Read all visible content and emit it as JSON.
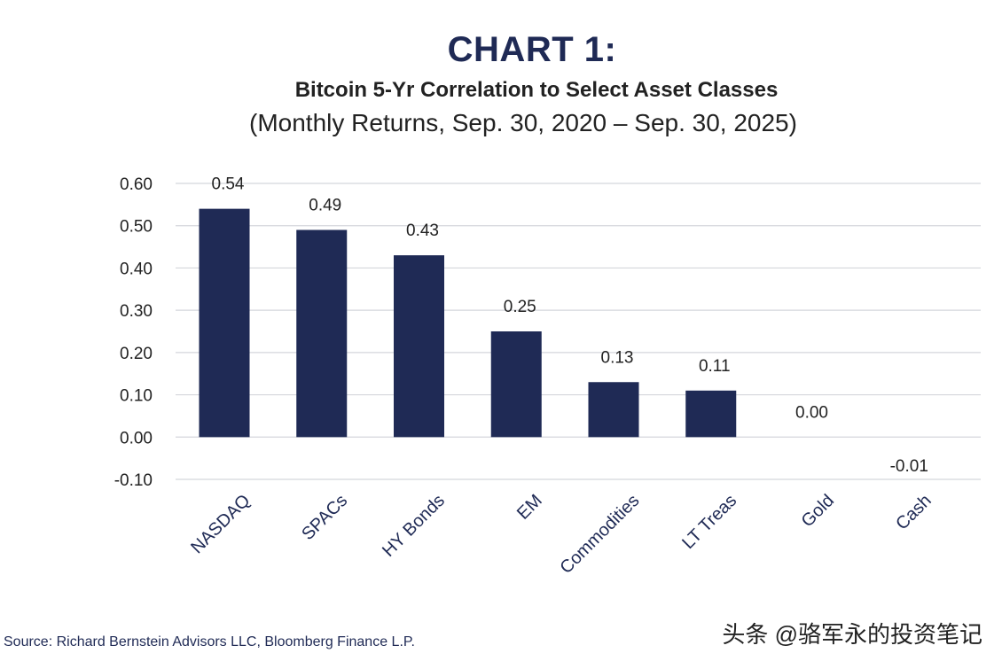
{
  "chart_data": {
    "type": "bar",
    "title": "CHART 1:",
    "subtitle": "Bitcoin 5-Yr Correlation to Select Asset Classes",
    "subtitle2": "(Monthly Returns, Sep. 30, 2020 – Sep. 30, 2025)",
    "categories": [
      "NASDAQ",
      "SPACs",
      "HY Bonds",
      "EM",
      "Commodities",
      "LT Treas",
      "Gold",
      "Cash"
    ],
    "values": [
      0.54,
      0.49,
      0.43,
      0.25,
      0.13,
      0.11,
      0.0,
      -0.01
    ],
    "value_labels": [
      "0.54",
      "0.49",
      "0.43",
      "0.25",
      "0.13",
      "0.11",
      "0.00",
      "-0.01"
    ],
    "yticks": [
      "0.60",
      "0.50",
      "0.40",
      "0.30",
      "0.20",
      "0.10",
      "0.00",
      "-0.10"
    ],
    "ytick_values": [
      0.6,
      0.5,
      0.4,
      0.3,
      0.2,
      0.1,
      0.0,
      -0.1
    ],
    "ylim": [
      -0.1,
      0.6
    ],
    "xlabel": "",
    "ylabel": "",
    "grid": true,
    "bar_color": "#1f2a55"
  },
  "footer": {
    "source": "Source: Richard Bernstein Advisors LLC, Bloomberg Finance L.P.",
    "watermark": "头条 @骆军永的投资笔记"
  }
}
